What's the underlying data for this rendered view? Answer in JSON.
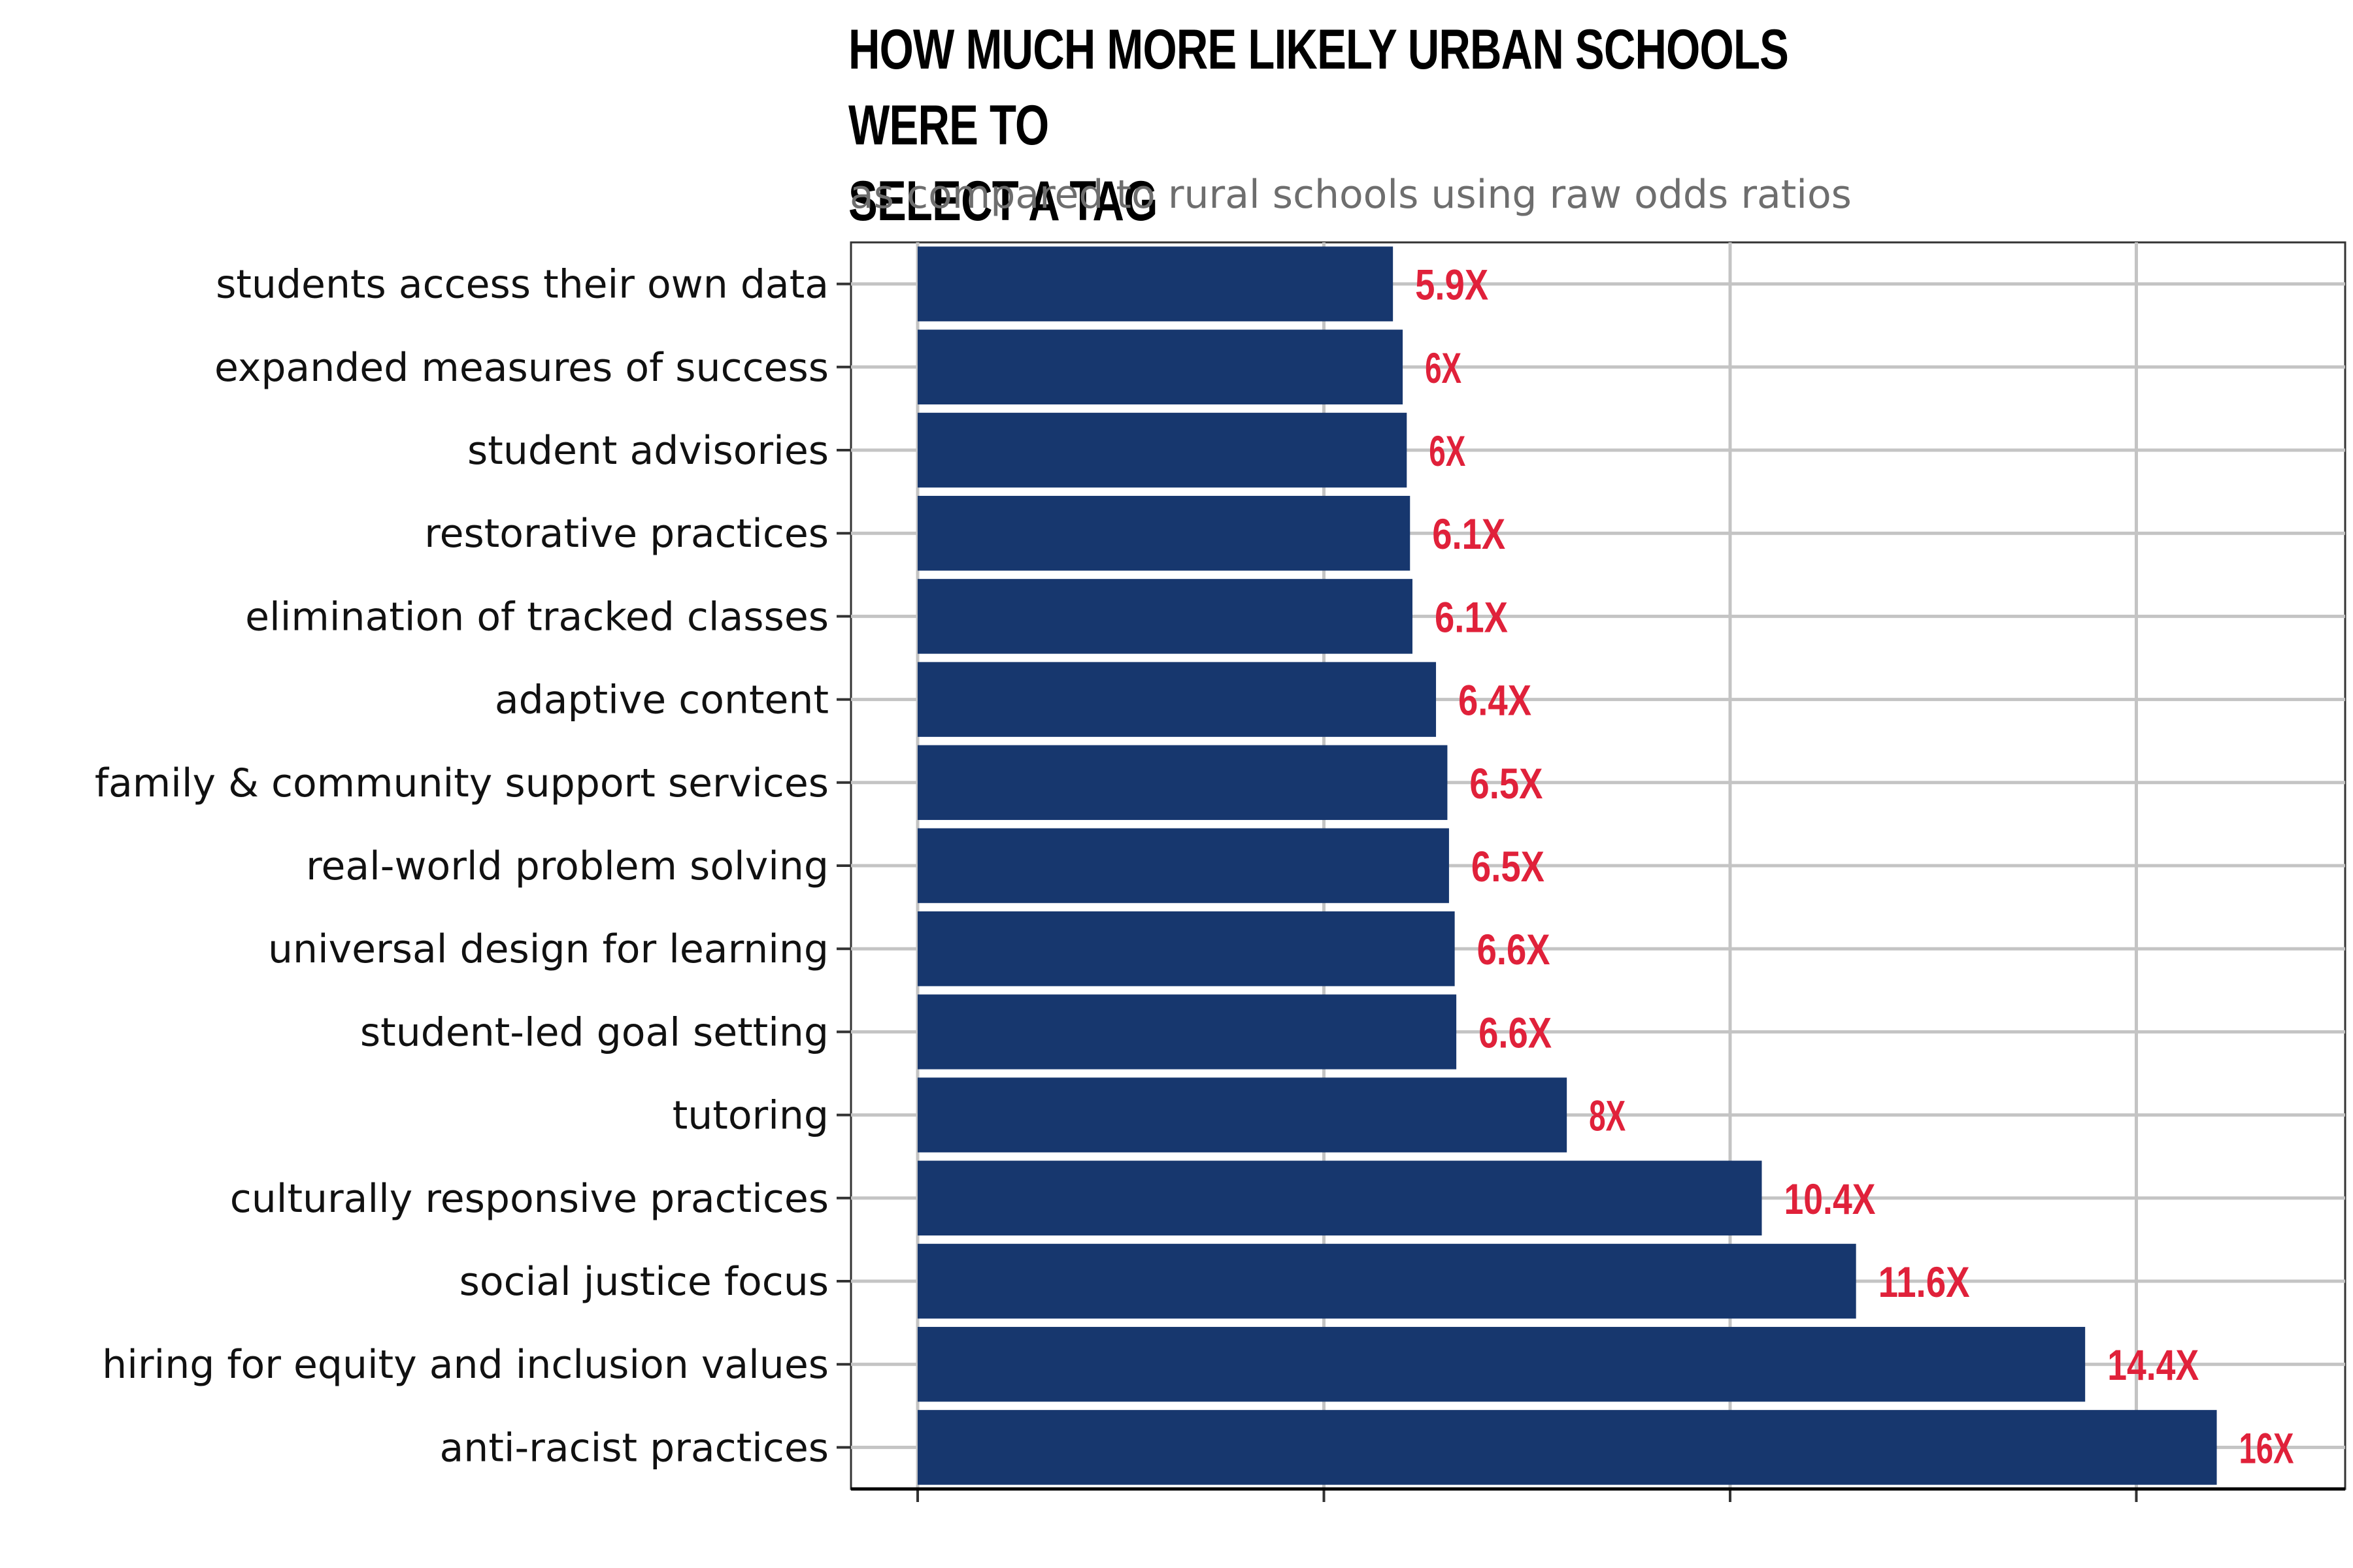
{
  "chart_data": {
    "type": "bar",
    "orientation": "horizontal",
    "title": "HOW MUCH MORE LIKELY URBAN SCHOOLS WERE TO\n SELECT A TAG",
    "subtitle": "as compared to rural schools using raw odds ratios",
    "xlabel": "",
    "ylabel": "",
    "xlim": [
      0,
      17.5
    ],
    "grid": true,
    "legend": "none",
    "categories": [
      "students access their own data",
      "expanded measures of success",
      "student advisories",
      "restorative practices",
      "elimination of tracked classes",
      "adaptive content",
      "family & community support services",
      "real-world problem solving",
      "universal design for learning",
      "student-led goal setting",
      "tutoring",
      "culturally responsive practices",
      "social justice focus",
      "hiring for equity and inclusion values",
      "anti-racist practices"
    ],
    "values": [
      5.85,
      5.97,
      6.02,
      6.06,
      6.09,
      6.38,
      6.52,
      6.54,
      6.61,
      6.63,
      7.99,
      10.39,
      11.55,
      14.37,
      15.99
    ],
    "data_labels": [
      "5.9X",
      "6X",
      "6X",
      "6.1X",
      "6.1X",
      "6.4X",
      "6.5X",
      "6.5X",
      "6.6X",
      "6.6X",
      "8X",
      "10.4X",
      "11.6X",
      "14.4X",
      "16X"
    ]
  },
  "colors": {
    "bar": "#17376e",
    "value_label": "#e0213a",
    "grid": "#c4c4c4",
    "axis": "#000000",
    "subtitle": "#6e6e6e"
  }
}
